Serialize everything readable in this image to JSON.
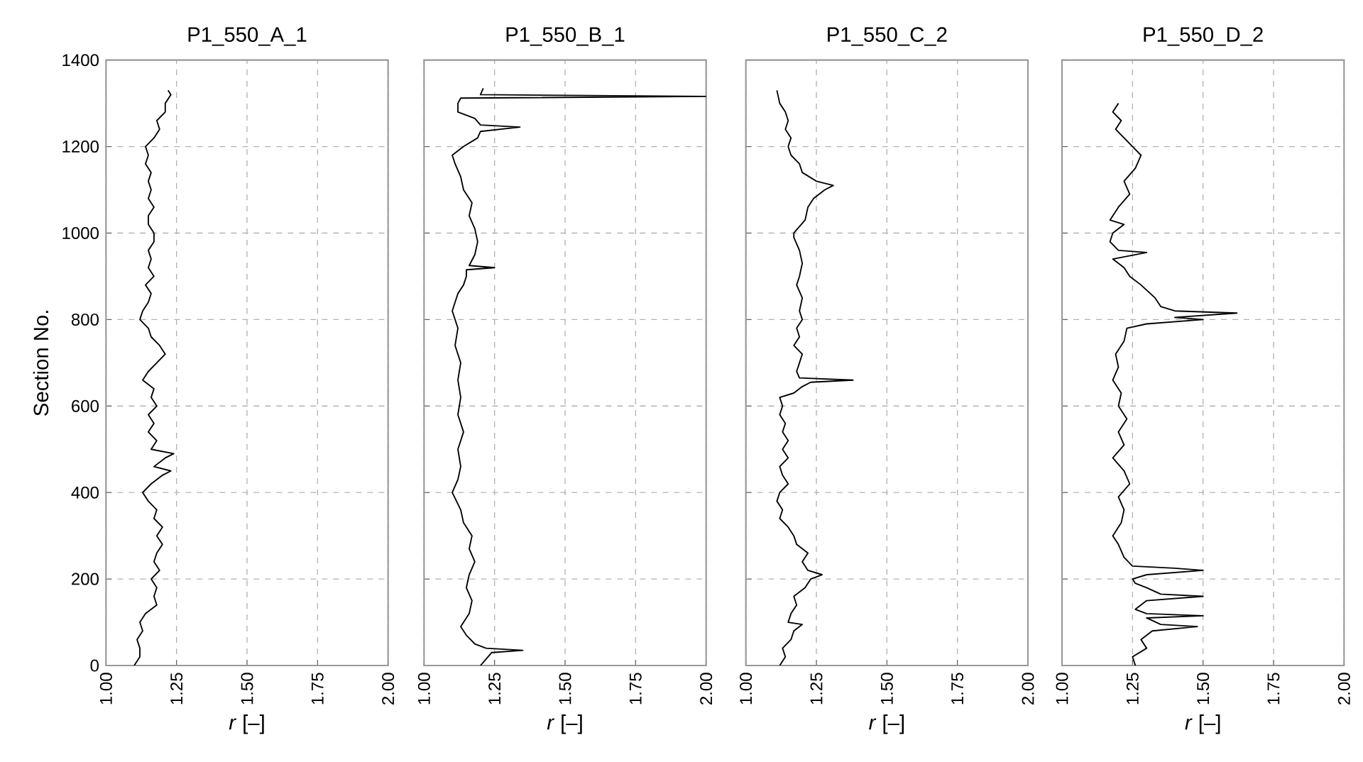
{
  "chart_data": [
    {
      "type": "line",
      "title": "P1_550_A_1",
      "xlabel": "*r* [–]",
      "ylabel": "Section No.",
      "color": "#000000",
      "grid": true,
      "xlim": [
        1,
        2
      ],
      "xticks": [
        {
          "value": 1,
          "label": "1.00"
        },
        {
          "value": 1.25,
          "label": "1.25"
        },
        {
          "value": 1.5,
          "label": "1.50"
        },
        {
          "value": 1.75,
          "label": "1.75"
        },
        {
          "value": 2,
          "label": "2.00"
        }
      ],
      "ylim": [
        0,
        1400
      ],
      "yticks": [
        0,
        200,
        400,
        600,
        800,
        1000,
        1200,
        1400
      ],
      "x": [
        1.1,
        1.12,
        1.12,
        1.11,
        1.13,
        1.12,
        1.14,
        1.18,
        1.17,
        1.18,
        1.16,
        1.19,
        1.17,
        1.18,
        1.2,
        1.18,
        1.2,
        1.17,
        1.18,
        1.15,
        1.13,
        1.16,
        1.2,
        1.23,
        1.17,
        1.21,
        1.24,
        1.16,
        1.18,
        1.15,
        1.17,
        1.15,
        1.18,
        1.16,
        1.17,
        1.13,
        1.15,
        1.18,
        1.21,
        1.19,
        1.16,
        1.15,
        1.12,
        1.13,
        1.15,
        1.16,
        1.14,
        1.17,
        1.15,
        1.16,
        1.15,
        1.17,
        1.17,
        1.15,
        1.15,
        1.17,
        1.15,
        1.16,
        1.15,
        1.16,
        1.14,
        1.15,
        1.14,
        1.17,
        1.19,
        1.18,
        1.21,
        1.21,
        1.23,
        1.22
      ],
      "values": [
        0,
        20,
        40,
        60,
        80,
        100,
        120,
        140,
        160,
        180,
        200,
        220,
        240,
        260,
        280,
        300,
        320,
        340,
        360,
        380,
        400,
        420,
        440,
        450,
        460,
        480,
        490,
        500,
        520,
        540,
        560,
        580,
        600,
        620,
        640,
        660,
        680,
        700,
        720,
        740,
        760,
        780,
        800,
        820,
        840,
        860,
        880,
        900,
        920,
        940,
        960,
        980,
        1000,
        1020,
        1040,
        1060,
        1080,
        1100,
        1120,
        1140,
        1160,
        1180,
        1200,
        1220,
        1240,
        1260,
        1280,
        1300,
        1320,
        1330
      ]
    },
    {
      "type": "line",
      "title": "P1_550_B_1",
      "xlabel": "*r* [–]",
      "color": "#000000",
      "grid": true,
      "tick_labels": "x",
      "xlim": [
        1,
        2
      ],
      "xticks": [
        {
          "value": 1,
          "label": "1.00"
        },
        {
          "value": 1.25,
          "label": "1.25"
        },
        {
          "value": 1.5,
          "label": "1.50"
        },
        {
          "value": 1.75,
          "label": "1.75"
        },
        {
          "value": 2,
          "label": "2.00"
        }
      ],
      "ylim": [
        0,
        1400
      ],
      "yticks": [
        0,
        200,
        400,
        600,
        800,
        1000,
        1200,
        1400
      ],
      "x": [
        1.2,
        1.22,
        1.24,
        1.35,
        1.22,
        1.18,
        1.15,
        1.13,
        1.16,
        1.17,
        1.15,
        1.16,
        1.18,
        1.16,
        1.17,
        1.14,
        1.13,
        1.1,
        1.12,
        1.13,
        1.12,
        1.14,
        1.12,
        1.13,
        1.12,
        1.13,
        1.11,
        1.12,
        1.1,
        1.12,
        1.14,
        1.15,
        1.15,
        1.25,
        1.16,
        1.18,
        1.19,
        1.18,
        1.16,
        1.17,
        1.14,
        1.13,
        1.11,
        1.1,
        1.14,
        1.19,
        1.2,
        1.34,
        1.2,
        1.18,
        1.12,
        1.12,
        1.13,
        2.0,
        1.2,
        1.21
      ],
      "values": [
        0,
        15,
        30,
        35,
        40,
        50,
        70,
        90,
        120,
        150,
        180,
        210,
        240,
        270,
        300,
        330,
        360,
        400,
        430,
        460,
        500,
        540,
        580,
        620,
        660,
        700,
        740,
        780,
        820,
        860,
        880,
        900,
        915,
        920,
        925,
        950,
        980,
        1010,
        1040,
        1070,
        1100,
        1130,
        1160,
        1180,
        1200,
        1220,
        1235,
        1245,
        1250,
        1265,
        1280,
        1300,
        1312,
        1316,
        1320,
        1335
      ]
    },
    {
      "type": "line",
      "title": "P1_550_C_2",
      "xlabel": "*r* [–]",
      "color": "#000000",
      "grid": true,
      "tick_labels": "x",
      "xlim": [
        1,
        2
      ],
      "xticks": [
        {
          "value": 1,
          "label": "1.00"
        },
        {
          "value": 1.25,
          "label": "1.25"
        },
        {
          "value": 1.5,
          "label": "1.50"
        },
        {
          "value": 1.75,
          "label": "1.75"
        },
        {
          "value": 2,
          "label": "2.00"
        }
      ],
      "ylim": [
        0,
        1400
      ],
      "yticks": [
        0,
        200,
        400,
        600,
        800,
        1000,
        1200,
        1400
      ],
      "x": [
        1.12,
        1.14,
        1.13,
        1.16,
        1.17,
        1.2,
        1.15,
        1.16,
        1.18,
        1.17,
        1.21,
        1.23,
        1.27,
        1.22,
        1.2,
        1.22,
        1.18,
        1.17,
        1.15,
        1.12,
        1.13,
        1.11,
        1.12,
        1.15,
        1.13,
        1.12,
        1.15,
        1.13,
        1.15,
        1.13,
        1.14,
        1.12,
        1.13,
        1.12,
        1.17,
        1.2,
        1.23,
        1.38,
        1.19,
        1.18,
        1.19,
        1.2,
        1.17,
        1.19,
        1.18,
        1.2,
        1.19,
        1.2,
        1.18,
        1.19,
        1.2,
        1.19,
        1.17,
        1.17,
        1.21,
        1.22,
        1.24,
        1.28,
        1.31,
        1.25,
        1.2,
        1.19,
        1.16,
        1.15,
        1.16,
        1.14,
        1.15,
        1.14,
        1.12,
        1.11
      ],
      "values": [
        0,
        20,
        40,
        60,
        80,
        95,
        100,
        120,
        140,
        160,
        180,
        200,
        210,
        220,
        240,
        260,
        280,
        300,
        320,
        340,
        360,
        380,
        400,
        420,
        440,
        460,
        480,
        500,
        520,
        540,
        560,
        580,
        600,
        620,
        630,
        645,
        655,
        660,
        665,
        680,
        700,
        720,
        740,
        760,
        780,
        800,
        820,
        850,
        880,
        900,
        930,
        960,
        990,
        1000,
        1030,
        1060,
        1080,
        1100,
        1110,
        1120,
        1140,
        1160,
        1180,
        1200,
        1220,
        1240,
        1260,
        1280,
        1300,
        1330
      ]
    },
    {
      "type": "line",
      "title": "P1_550_D_2",
      "xlabel": "*r* [–]",
      "color": "#000000",
      "grid": true,
      "tick_labels": "x",
      "xlim": [
        1,
        2
      ],
      "xticks": [
        {
          "value": 1,
          "label": "1.00"
        },
        {
          "value": 1.25,
          "label": "1.25"
        },
        {
          "value": 1.5,
          "label": "1.50"
        },
        {
          "value": 1.75,
          "label": "1.75"
        },
        {
          "value": 2,
          "label": "2.00"
        }
      ],
      "ylim": [
        0,
        1400
      ],
      "yticks": [
        0,
        200,
        400,
        600,
        800,
        1000,
        1200,
        1400
      ],
      "x": [
        1.26,
        1.25,
        1.3,
        1.28,
        1.32,
        1.48,
        1.35,
        1.3,
        1.5,
        1.3,
        1.26,
        1.3,
        1.5,
        1.35,
        1.3,
        1.26,
        1.25,
        1.3,
        1.5,
        1.4,
        1.25,
        1.22,
        1.2,
        1.18,
        1.21,
        1.22,
        1.2,
        1.24,
        1.22,
        1.18,
        1.22,
        1.2,
        1.23,
        1.2,
        1.21,
        1.18,
        1.2,
        1.19,
        1.22,
        1.23,
        1.3,
        1.5,
        1.4,
        1.62,
        1.4,
        1.35,
        1.33,
        1.28,
        1.24,
        1.22,
        1.18,
        1.3,
        1.2,
        1.17,
        1.18,
        1.22,
        1.17,
        1.2,
        1.24,
        1.22,
        1.26,
        1.28,
        1.25,
        1.22,
        1.19,
        1.21,
        1.18,
        1.2
      ],
      "values": [
        0,
        20,
        40,
        60,
        80,
        90,
        95,
        110,
        115,
        120,
        130,
        150,
        160,
        165,
        180,
        190,
        200,
        210,
        220,
        225,
        230,
        250,
        280,
        300,
        330,
        360,
        390,
        420,
        450,
        480,
        510,
        540,
        570,
        600,
        630,
        660,
        690,
        720,
        750,
        780,
        790,
        800,
        805,
        815,
        820,
        830,
        850,
        880,
        900,
        920,
        940,
        955,
        960,
        980,
        1000,
        1020,
        1030,
        1060,
        1090,
        1120,
        1150,
        1180,
        1200,
        1220,
        1240,
        1260,
        1280,
        1300
      ]
    }
  ]
}
